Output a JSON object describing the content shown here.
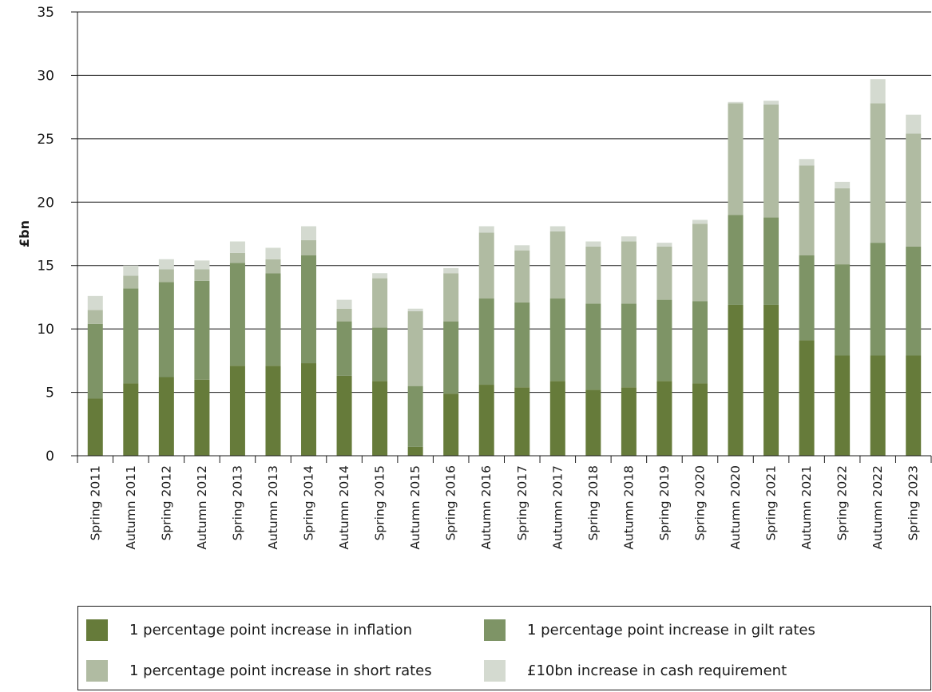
{
  "chart_data": {
    "type": "bar",
    "stacked": true,
    "ylabel": "£bn",
    "xlabel": "",
    "ylim": [
      0,
      35
    ],
    "yticks": [
      0,
      5,
      10,
      15,
      20,
      25,
      30,
      35
    ],
    "grid": "horizontal",
    "legend_position": "bottom",
    "categories": [
      "Spring 2011",
      "Autumn 2011",
      "Spring 2012",
      "Autumn 2012",
      "Spring 2013",
      "Autumn 2013",
      "Spring 2014",
      "Autumn 2014",
      "Spring 2015",
      "Autumn 2015",
      "Spring 2016",
      "Autumn 2016",
      "Spring 2017",
      "Autumn 2017",
      "Spring 2018",
      "Autumn 2018",
      "Spring 2019",
      "Spring 2020",
      "Autumn 2020",
      "Spring 2021",
      "Autumn 2021",
      "Spring 2022",
      "Autumn 2022",
      "Spring 2023"
    ],
    "series": [
      {
        "name": "1 percentage point increase in inflation",
        "color": "#667b3a",
        "values": [
          4.5,
          5.7,
          6.2,
          6.0,
          7.1,
          7.1,
          7.3,
          6.3,
          5.9,
          0.7,
          4.9,
          5.6,
          5.4,
          5.9,
          5.2,
          5.4,
          5.9,
          5.7,
          11.9,
          11.9,
          9.1,
          7.9,
          7.9,
          7.9
        ]
      },
      {
        "name": "1 percentage point increase in gilt rates",
        "color": "#7e9466",
        "values": [
          5.9,
          7.5,
          7.5,
          7.8,
          8.1,
          7.3,
          8.5,
          4.3,
          4.2,
          4.8,
          5.7,
          6.8,
          6.7,
          6.5,
          6.8,
          6.6,
          6.4,
          6.5,
          7.1,
          6.9,
          6.7,
          7.2,
          8.9,
          8.6
        ]
      },
      {
        "name": "1 percentage point increase in short rates",
        "color": "#b0bba2",
        "values": [
          1.1,
          1.0,
          1.0,
          0.9,
          0.8,
          1.1,
          1.2,
          1.0,
          3.9,
          5.9,
          3.8,
          5.2,
          4.1,
          5.3,
          4.5,
          4.9,
          4.2,
          6.1,
          8.8,
          8.9,
          7.1,
          6.0,
          11.0,
          8.9
        ]
      },
      {
        "name": "£10bn increase in cash requirement",
        "color": "#d4dad0",
        "values": [
          1.1,
          0.8,
          0.8,
          0.7,
          0.9,
          0.9,
          1.1,
          0.7,
          0.4,
          0.2,
          0.4,
          0.5,
          0.4,
          0.4,
          0.4,
          0.4,
          0.3,
          0.3,
          0.1,
          0.3,
          0.5,
          0.5,
          1.9,
          1.5
        ]
      }
    ]
  }
}
